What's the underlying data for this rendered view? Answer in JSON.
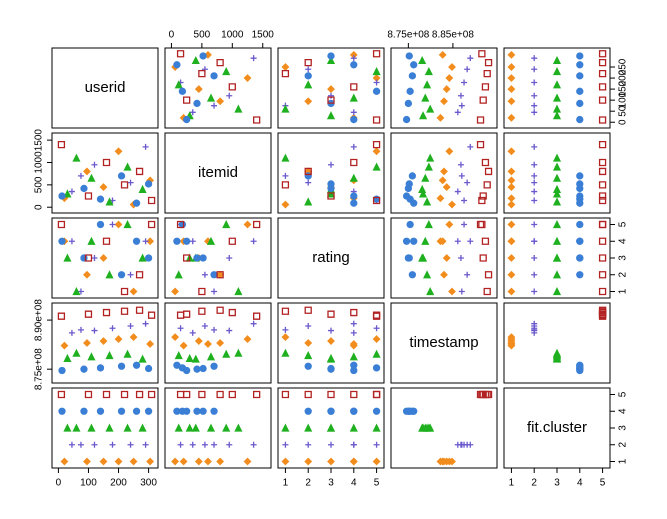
{
  "chart_data": {
    "type": "scatter-matrix",
    "variables": [
      {
        "name": "userid",
        "lim": [
          -8,
          318
        ],
        "xticks": [
          0,
          100,
          200,
          300
        ],
        "yticks": [
          0,
          50,
          100,
          150,
          200,
          250
        ]
      },
      {
        "name": "itemid",
        "lim": [
          -40,
          1570
        ],
        "xticks": [
          0,
          500,
          1000,
          1500
        ],
        "yticks": [
          0,
          500,
          1000,
          1500
        ]
      },
      {
        "name": "rating",
        "lim": [
          0.85,
          5.15
        ],
        "xticks": [
          1,
          2,
          3,
          4,
          5
        ],
        "yticks": [
          1,
          2,
          3,
          4,
          5
        ]
      },
      {
        "name": "timestamp",
        "lim": [
          872000000,
          894000000
        ],
        "xticks": [
          {
            "value": 875000000,
            "label": "8.75e+08"
          },
          {
            "value": 885000000,
            "label": "8.85e+08"
          }
        ],
        "yticks": [
          {
            "value": 875000000,
            "label": "8.75e+08"
          },
          {
            "value": 890000000,
            "label": "8.90e+08"
          }
        ]
      },
      {
        "name": "fit.cluster",
        "lim": [
          0.85,
          5.15
        ],
        "xticks": [
          1,
          2,
          3,
          4,
          5
        ],
        "yticks": [
          1,
          2,
          3,
          4,
          5
        ]
      }
    ],
    "series": [
      {
        "color": "#f28c1c",
        "marker": "diamond",
        "values": [
          [
            20,
            200,
            4,
            882200000,
            1
          ],
          [
            95,
            800,
            2,
            883000000,
            1
          ],
          [
            150,
            450,
            3,
            883600000,
            1
          ],
          [
            200,
            1250,
            5,
            884200000,
            1
          ],
          [
            250,
            60,
            1,
            884800000,
            1
          ],
          [
            305,
            600,
            4,
            882700000,
            1
          ]
        ]
      },
      {
        "color": "#6a5acd",
        "marker": "plus",
        "values": [
          [
            45,
            350,
            4,
            886100000,
            2
          ],
          [
            120,
            950,
            3,
            886800000,
            2
          ],
          [
            180,
            150,
            5,
            887500000,
            2
          ],
          [
            240,
            550,
            2,
            888200000,
            2
          ],
          [
            290,
            1350,
            4,
            888900000,
            2
          ],
          [
            75,
            700,
            1,
            887000000,
            2
          ]
        ]
      },
      {
        "color": "#1fb01f",
        "marker": "triangle",
        "values": [
          [
            30,
            300,
            3,
            878300000,
            3
          ],
          [
            110,
            650,
            4,
            878800000,
            3
          ],
          [
            170,
            120,
            2,
            879200000,
            3
          ],
          [
            230,
            900,
            5,
            879600000,
            3
          ],
          [
            280,
            400,
            3,
            878100000,
            3
          ],
          [
            60,
            1100,
            1,
            879900000,
            3
          ]
        ]
      },
      {
        "color": "#3a7fd5",
        "marker": "circle",
        "values": [
          [
            12,
            250,
            4,
            874600000,
            4
          ],
          [
            85,
            420,
            3,
            875000000,
            4
          ],
          [
            140,
            180,
            5,
            875400000,
            4
          ],
          [
            210,
            700,
            2,
            875900000,
            4
          ],
          [
            260,
            90,
            4,
            876200000,
            4
          ],
          [
            300,
            520,
            3,
            875200000,
            4
          ]
        ]
      },
      {
        "color": "#b22222",
        "marker": "square",
        "values": [
          [
            10,
            1400,
            5,
            891200000,
            5
          ],
          [
            100,
            250,
            3,
            891800000,
            5
          ],
          [
            160,
            1000,
            4,
            892300000,
            5
          ],
          [
            220,
            500,
            1,
            892700000,
            5
          ],
          [
            270,
            800,
            2,
            893000000,
            5
          ],
          [
            310,
            150,
            5,
            891500000,
            5
          ]
        ]
      }
    ]
  }
}
